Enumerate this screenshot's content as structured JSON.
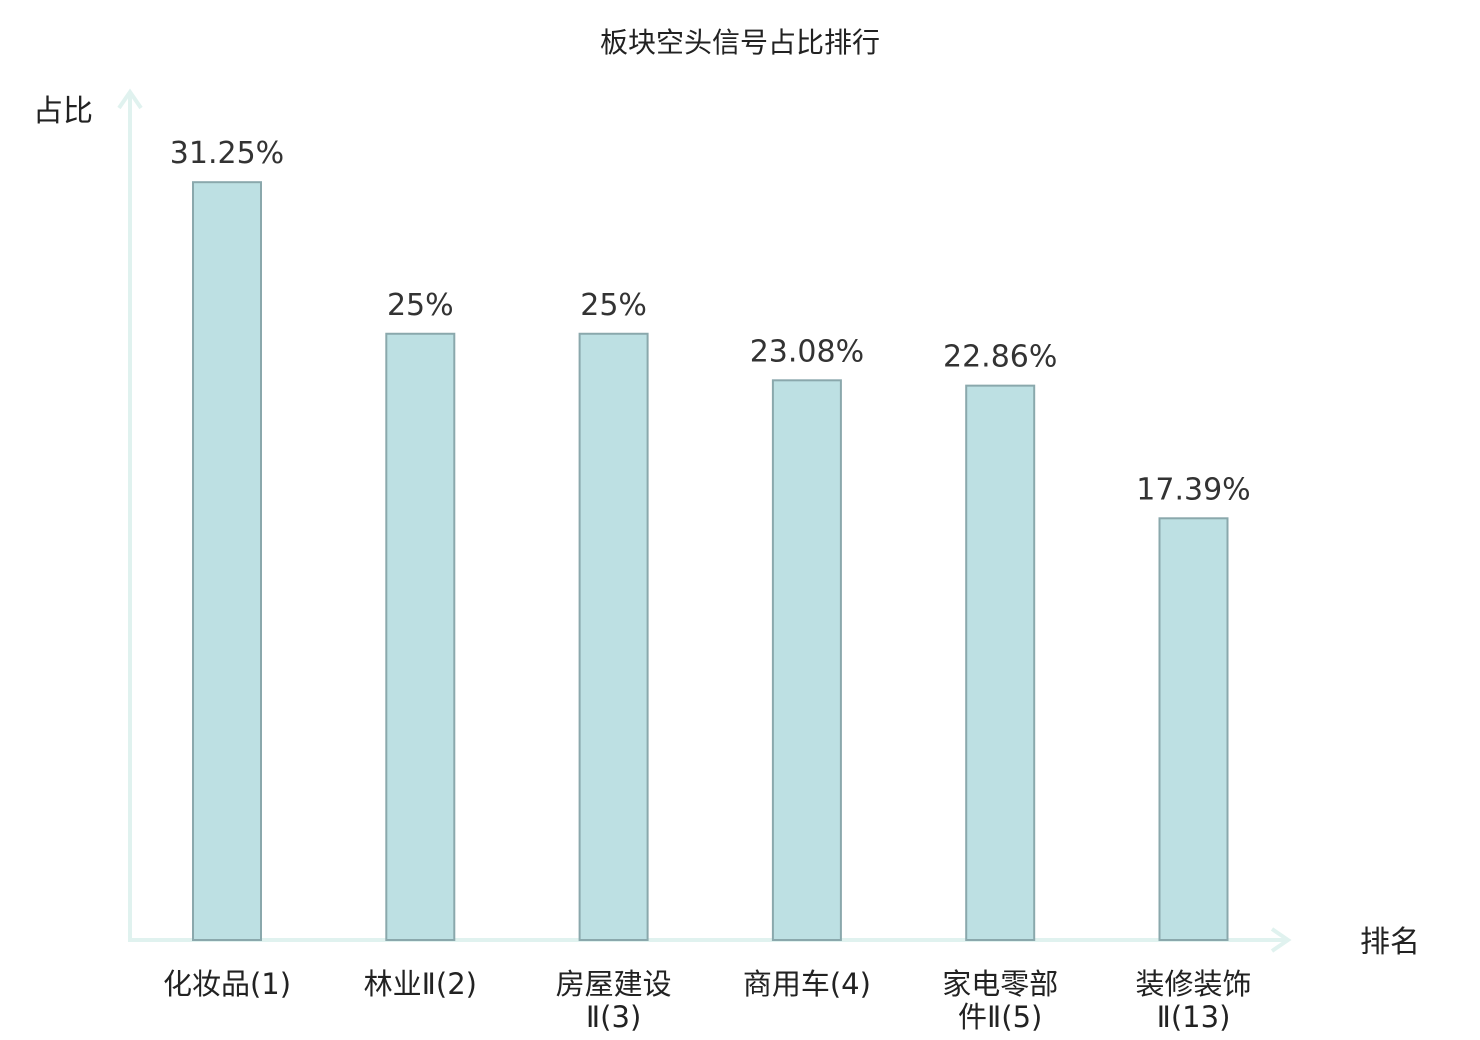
{
  "chart_data": {
    "type": "bar",
    "title": "板块空头信号占比排行",
    "ylabel": "占比",
    "xlabel": "排名",
    "ylim": [
      0,
      35
    ],
    "grid": false,
    "categories": [
      [
        "化妆品(1)"
      ],
      [
        "林业Ⅱ(2)"
      ],
      [
        "房屋建设",
        "Ⅱ(3)"
      ],
      [
        "商用车(4)"
      ],
      [
        "家电零部",
        "件Ⅱ(5)"
      ],
      [
        "装修装饰",
        "Ⅱ(13)"
      ]
    ],
    "values": [
      31.25,
      25,
      25,
      23.08,
      22.86,
      17.39
    ],
    "value_labels": [
      "31.25%",
      "25%",
      "25%",
      "23.08%",
      "22.86%",
      "17.39%"
    ],
    "highlight_index": 5,
    "colors": {
      "bar_fill": "#bde0e3",
      "bar_stroke": "#8aa8ac",
      "axis": "#e0f2ef",
      "highlight_label": "#e0151b",
      "text": "#222222"
    }
  }
}
